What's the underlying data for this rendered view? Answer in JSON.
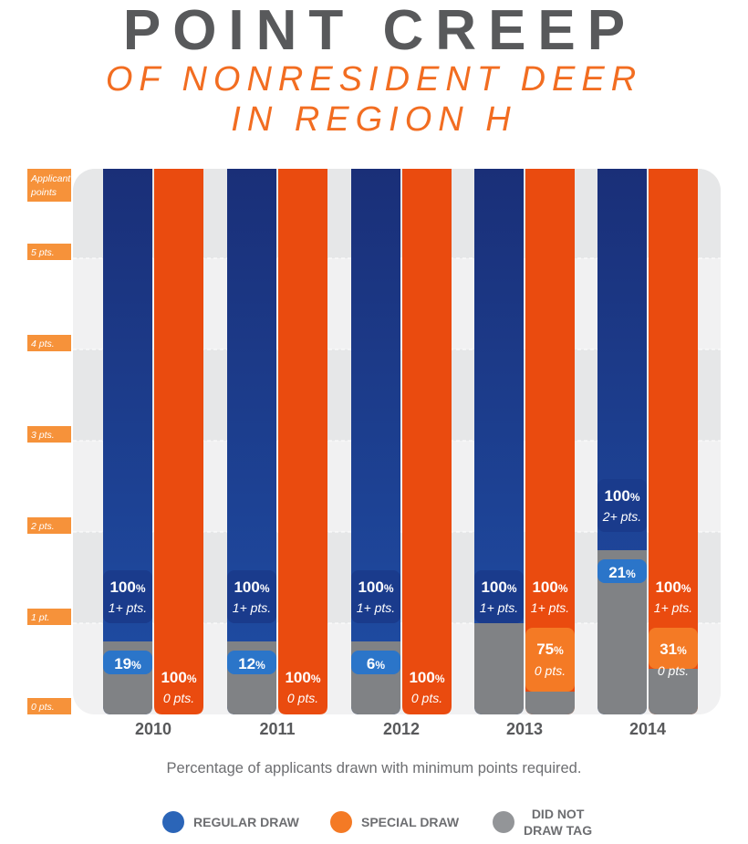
{
  "title": {
    "main": "POINT CREEP",
    "line1": "OF NONRESIDENT DEER",
    "line2": "IN REGION H"
  },
  "colors": {
    "regular": "#1b3f8f",
    "special": "#ea4b0f",
    "did_not_draw": "#808285",
    "regular_label_bg": "#2b75c9",
    "special_label_bg": "#f47a25",
    "axis_label_bg": "#f6923a"
  },
  "chart_data": {
    "type": "bar",
    "title": "POINT CREEP OF NONRESIDENT DEER IN REGION H",
    "ylabel": "Applicant points",
    "ylim": [
      0,
      6
    ],
    "y_ticks": [
      {
        "value": 0,
        "label": "0 pts."
      },
      {
        "value": 1,
        "label": "1 pt."
      },
      {
        "value": 2,
        "label": "2 pts."
      },
      {
        "value": 3,
        "label": "3 pts."
      },
      {
        "value": 4,
        "label": "4 pts."
      },
      {
        "value": 5,
        "label": "5 pts."
      }
    ],
    "categories": [
      "2010",
      "2011",
      "2012",
      "2013",
      "2014"
    ],
    "series": [
      {
        "name": "Regular Draw",
        "bars": [
          {
            "year": "2010",
            "not_drawn_top": 0.8,
            "partial_top": 0.7,
            "partial_pct": "19",
            "full_top": 1.0,
            "full_pct": "100",
            "full_pts": "1+ pts."
          },
          {
            "year": "2011",
            "not_drawn_top": 0.8,
            "partial_top": 0.7,
            "partial_pct": "12",
            "full_top": 1.0,
            "full_pct": "100",
            "full_pts": "1+ pts."
          },
          {
            "year": "2012",
            "not_drawn_top": 0.8,
            "partial_top": 0.7,
            "partial_pct": "6",
            "full_top": 1.0,
            "full_pct": "100",
            "full_pts": "1+ pts."
          },
          {
            "year": "2013",
            "not_drawn_top": 1.0,
            "full_top": 1.0,
            "full_pct": "100",
            "full_pts": "1+ pts."
          },
          {
            "year": "2014",
            "not_drawn_top": 1.8,
            "partial_top": 1.7,
            "partial_pct": "21",
            "full_top": 2.0,
            "full_pct": "100",
            "full_pts": "2+ pts."
          }
        ]
      },
      {
        "name": "Special Draw",
        "bars": [
          {
            "year": "2010",
            "not_drawn_top": 0,
            "min_label_pct": "100",
            "min_label_pts": "0 pts."
          },
          {
            "year": "2011",
            "not_drawn_top": 0,
            "min_label_pct": "100",
            "min_label_pts": "0 pts."
          },
          {
            "year": "2012",
            "not_drawn_top": 0,
            "min_label_pct": "100",
            "min_label_pts": "0 pts."
          },
          {
            "year": "2013",
            "not_drawn_top": 0.25,
            "partial_top": 0.95,
            "partial_pct": "75",
            "partial_pts": "0 pts.",
            "full_top": 1.0,
            "full_pct": "100",
            "full_pts": "1+ pts."
          },
          {
            "year": "2014",
            "not_drawn_top": 0.5,
            "partial_top": 0.95,
            "partial_pct": "31",
            "partial_pts": "0 pts.",
            "full_top": 1.0,
            "full_pct": "100",
            "full_pts": "1+ pts."
          }
        ]
      },
      {
        "name": "Did Not Draw Tag"
      }
    ],
    "percent_sign": "%"
  },
  "footnote": "Percentage of applicants drawn with minimum points required.",
  "legend": {
    "regular": "REGULAR DRAW",
    "special": "SPECIAL DRAW",
    "did_not_draw_line1": "DID NOT",
    "did_not_draw_line2": "DRAW TAG"
  }
}
